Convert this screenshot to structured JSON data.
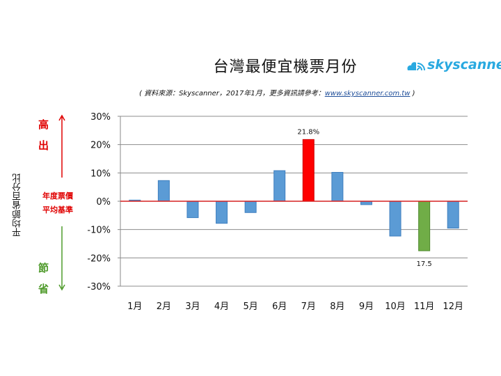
{
  "header": {
    "title": "台灣最便宜機票月份",
    "subtitle_prefix": "( 資料來源：Skyscanner，2017年1月，更多資訊請參考：",
    "subtitle_link": "www.skyscanner.com.tw",
    "subtitle_suffix": " )",
    "logo_text": "skyscanner",
    "logo_icon": "cloud-signal-icon"
  },
  "annotations": {
    "higher": "高出",
    "save": "節省",
    "baseline_line1": "年度票價",
    "baseline_line2": "平均基準",
    "y_axis_label": "平均節省百分比"
  },
  "colors": {
    "default_bar": "#5b9bd5",
    "highest_bar": "#ff0000",
    "lowest_bar": "#70ad47",
    "zero_line": "#d62020",
    "up_arrow": "#e00000",
    "down_arrow": "#4e9a2a"
  },
  "chart_data": {
    "type": "bar",
    "title": "台灣最便宜機票月份",
    "xlabel": "",
    "ylabel": "平均節省百分比",
    "categories": [
      "1月",
      "2月",
      "3月",
      "4月",
      "5月",
      "6月",
      "7月",
      "8月",
      "9月",
      "10月",
      "11月",
      "12月"
    ],
    "values": [
      0.4,
      7.3,
      -5.8,
      -7.8,
      -4.0,
      10.8,
      21.8,
      10.2,
      -1.2,
      -12.3,
      -17.5,
      -9.5
    ],
    "ylim": [
      -30,
      30
    ],
    "yticks": [
      30,
      20,
      10,
      0,
      -10,
      -20,
      -30
    ],
    "ytick_labels": [
      "30%",
      "20%",
      "10%",
      "0%",
      "-10%",
      "-20%",
      "-30%"
    ],
    "grid": true,
    "highlight": {
      "max_index": 6,
      "min_index": 10
    },
    "data_labels": [
      {
        "index": 6,
        "text": "21.8%"
      },
      {
        "index": 10,
        "text": "17.5"
      }
    ]
  }
}
